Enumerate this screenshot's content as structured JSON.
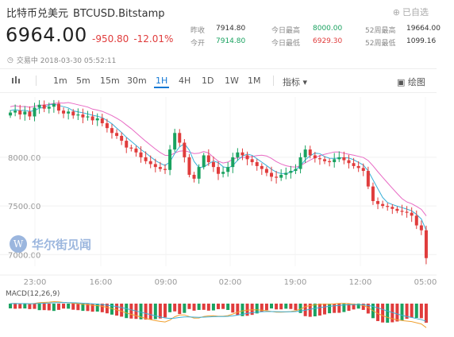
{
  "header": {
    "title": "比特币兑美元",
    "symbol": "BTCUSD.Bitstamp",
    "added_label": "已自选"
  },
  "quote": {
    "price": "6964.00",
    "change": "-950.80",
    "change_pct": "-12.01%",
    "status": "交易中 2018-03-30 05:52:11"
  },
  "stats": [
    [
      {
        "label": "昨收",
        "value": "7914.80",
        "color": "dark"
      },
      {
        "label": "今日最高",
        "value": "8000.00",
        "color": "green"
      },
      {
        "label": "52周最高",
        "value": "19664.00",
        "color": "dark"
      }
    ],
    [
      {
        "label": "今开",
        "value": "7914.80",
        "color": "green"
      },
      {
        "label": "今日最低",
        "value": "6929.30",
        "color": "red"
      },
      {
        "label": "52周最低",
        "value": "1099.16",
        "color": "dark"
      }
    ]
  ],
  "toolbar": {
    "intervals": [
      "1m",
      "5m",
      "15m",
      "30m",
      "1H",
      "4H",
      "1D",
      "1W",
      "1M"
    ],
    "active": "1H",
    "indicator_label": "指标",
    "draw_label": "绘图"
  },
  "watermark": {
    "text": "华尔街见闻",
    "logo_letter": "W"
  },
  "chart_data": {
    "type": "candlestick",
    "x_tick_labels": [
      "23:00",
      "16:00",
      "09:00",
      "02:00",
      "19:00",
      "12:00",
      "05:00"
    ],
    "y_tick_labels": [
      "8000.00",
      "7500.00",
      "7000.00"
    ],
    "y_ticks": [
      8000,
      7500,
      7000
    ],
    "macd_label": "MACD(12,26,9)",
    "up_color": "#1aa260",
    "down_color": "#e03c3c",
    "ma_colors": [
      "#e86ac4",
      "#3ab0d8",
      "#f0a030"
    ],
    "closes": [
      8460,
      8480,
      8440,
      8470,
      8420,
      8510,
      8540,
      8500,
      8520,
      8550,
      8480,
      8450,
      8470,
      8430,
      8440,
      8410,
      8420,
      8380,
      8400,
      8350,
      8300,
      8250,
      8220,
      8170,
      8100,
      8090,
      8050,
      8000,
      7960,
      7930,
      7900,
      7880,
      7870,
      8080,
      8250,
      8150,
      8000,
      7820,
      7780,
      7900,
      8020,
      7950,
      7900,
      7830,
      7850,
      7900,
      8000,
      8050,
      8020,
      7980,
      7950,
      7910,
      7880,
      7840,
      7800,
      7790,
      7820,
      7840,
      7860,
      7880,
      8000,
      8080,
      8020,
      7990,
      7980,
      7960,
      7950,
      7980,
      8000,
      7970,
      7940,
      7910,
      7890,
      7860,
      7700,
      7550,
      7520,
      7500,
      7490,
      7470,
      7450,
      7440,
      7430,
      7400,
      7300,
      7250,
      6964
    ]
  }
}
